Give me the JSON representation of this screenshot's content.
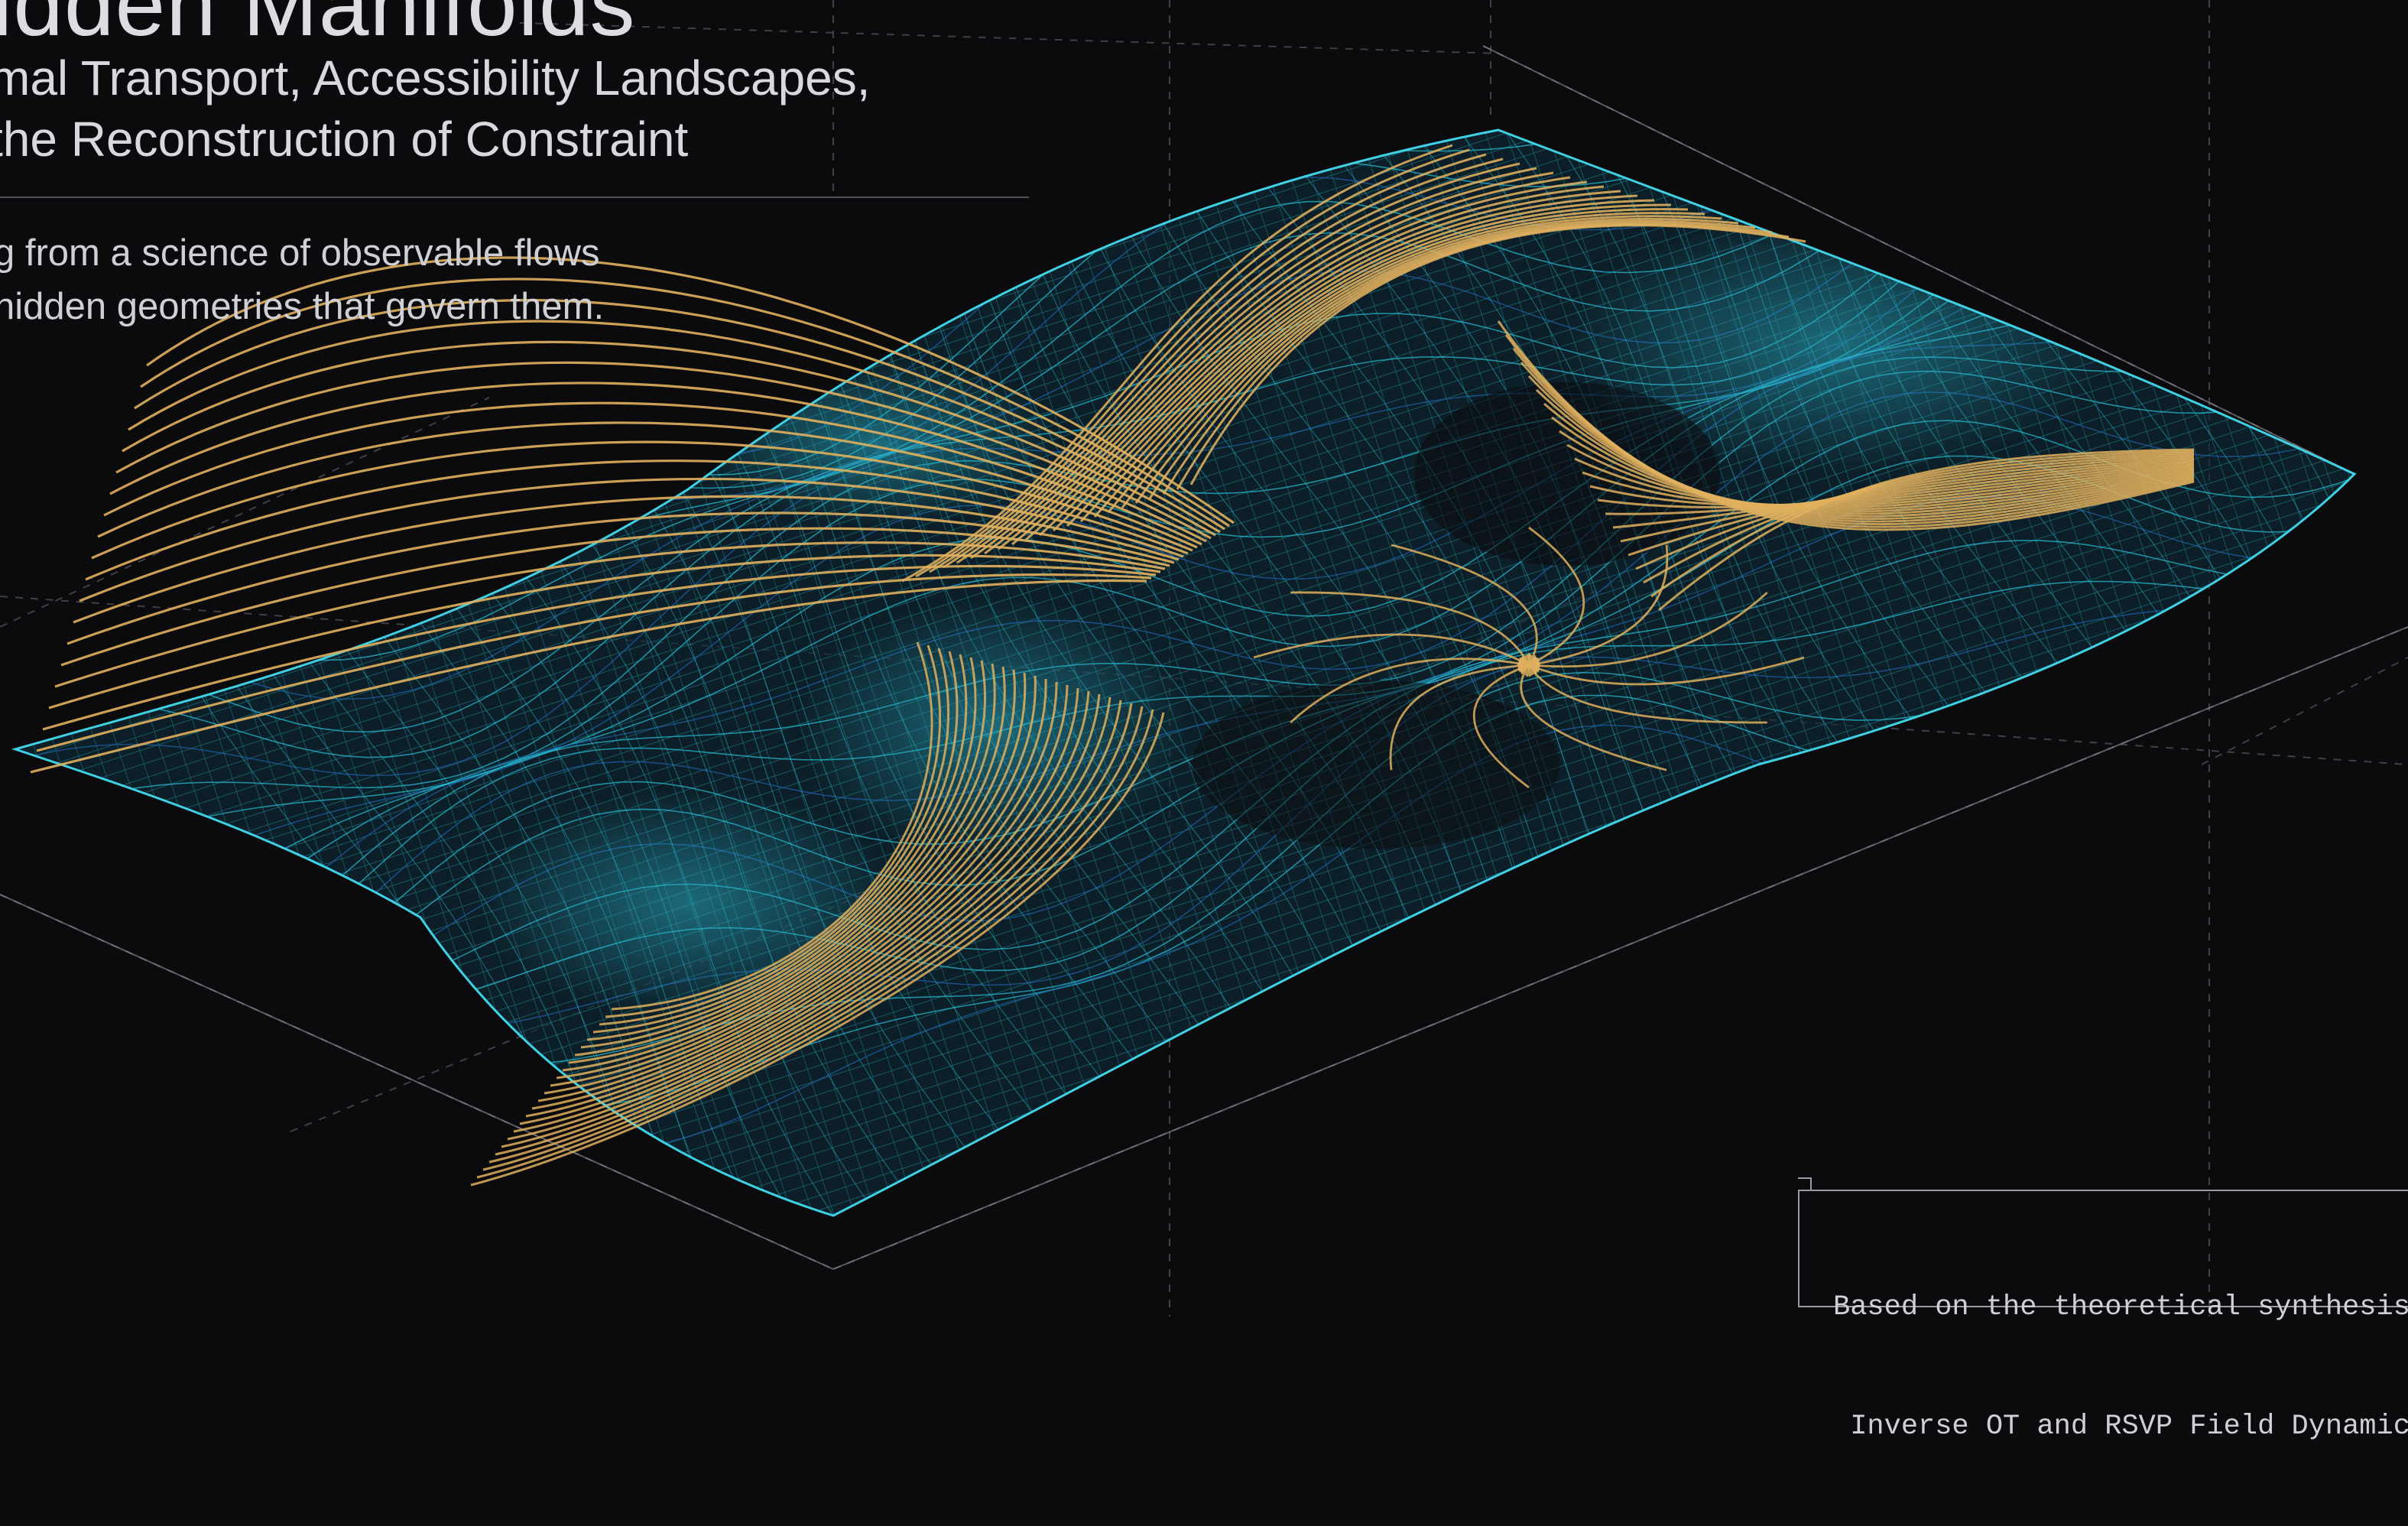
{
  "poster": {
    "title": "idden Manifolds",
    "subtitle_lines": [
      "mal Transport, Accessibility Landscapes,",
      "the Reconstruction of Constraint"
    ],
    "tagline_lines": [
      "g from a science of observable flows",
      "hidden geometries that govern them."
    ],
    "credit_lines": [
      "Based on the theoretical synthesis",
      " Inverse OT and RSVP Field Dynamic"
    ]
  },
  "colors": {
    "background": "#0b0b0e",
    "mesh": "#27c0d6",
    "mesh_deep": "#1f5fa8",
    "flow": "#e0b05e",
    "guide": "#7e7f86"
  }
}
